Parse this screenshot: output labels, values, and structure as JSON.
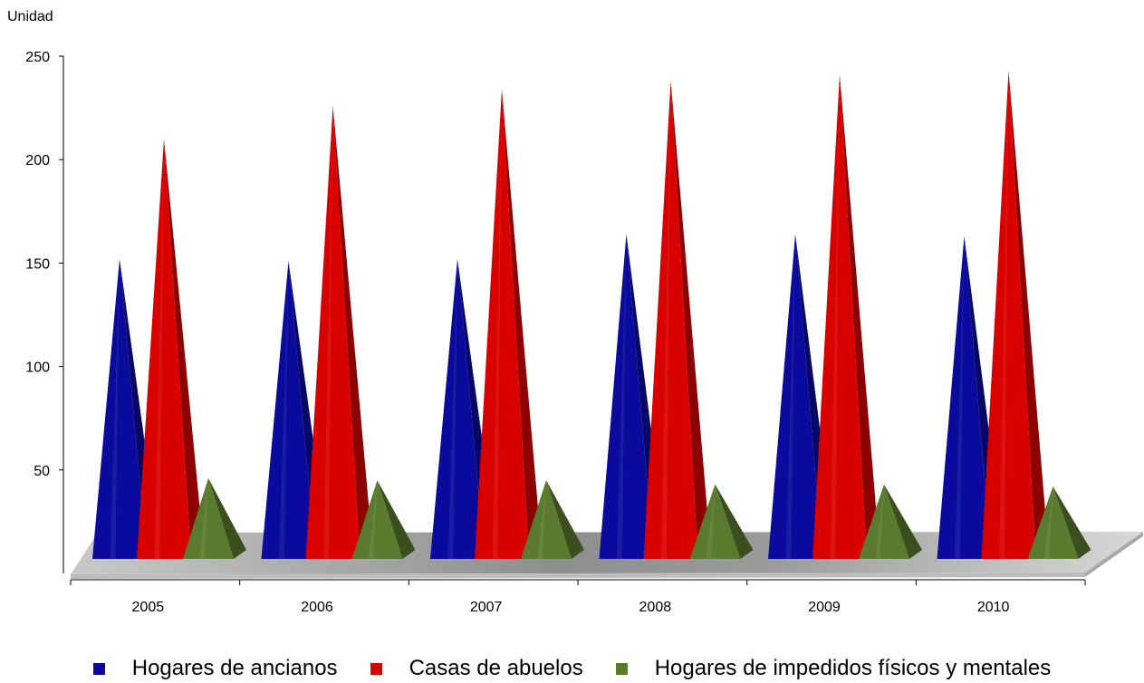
{
  "chart_data": {
    "type": "bar",
    "ylabel": "Unidad",
    "ylim": [
      0,
      250
    ],
    "yticks": [
      50,
      100,
      150,
      200,
      250
    ],
    "categories": [
      "2005",
      "2006",
      "2007",
      "2008",
      "2009",
      "2010"
    ],
    "series": [
      {
        "name": "Hogares de ancianos",
        "color": "#0a0a9c",
        "values": [
          152,
          151,
          152,
          164,
          164,
          163
        ]
      },
      {
        "name": "Casas de abuelos",
        "color": "#d90000",
        "values": [
          210,
          226,
          234,
          238,
          241,
          243
        ]
      },
      {
        "name": "Hogares de impedidos físicos y mentales",
        "color": "#5a7a2e",
        "values": [
          46,
          45,
          45,
          43,
          43,
          42
        ]
      }
    ],
    "legend_position": "bottom",
    "grid": false
  }
}
